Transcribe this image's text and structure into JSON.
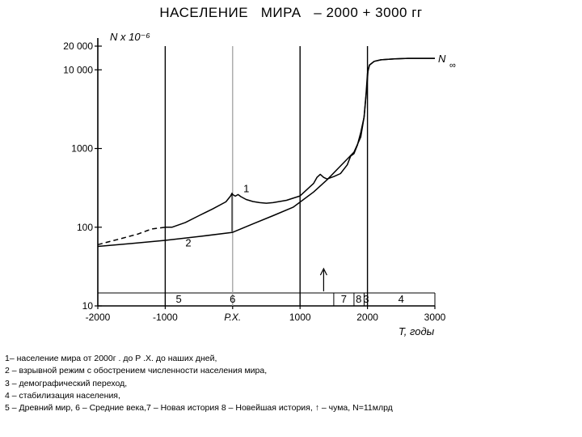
{
  "title": "НАСЕЛЕНИЕ   МИРА   – 2000 + 3000 гг",
  "chart_data": {
    "type": "line",
    "title": "НАСЕЛЕНИЕ   МИРА   – 2000 + 3000 гг",
    "xlabel": "T, годы",
    "ylabel": "N x 10⁻⁶",
    "x_scale": "linear",
    "y_scale": "log",
    "xlim": [
      -2000,
      3000
    ],
    "ylim": [
      10,
      20000
    ],
    "x_ticks": [
      -2000,
      -1000,
      0,
      1000,
      2000,
      3000
    ],
    "x_tick_labels": [
      "-2000",
      "-1000",
      "Р.Х.",
      "1000",
      "2000",
      "3000"
    ],
    "y_ticks": [
      10,
      100,
      1000,
      10000,
      20000
    ],
    "y_tick_labels": [
      "10",
      "100",
      "1000",
      "10 000",
      "20 000"
    ],
    "asymptote_label": "N ∞",
    "asymptote_value": 14000,
    "grid": false,
    "era_boundaries": [
      -1000,
      0,
      1000,
      1500,
      1800,
      1950,
      2000,
      3000
    ],
    "eras": [
      {
        "label": "5",
        "x": -800
      },
      {
        "label": "6",
        "x": 0
      },
      {
        "label": "7",
        "x": 1650
      },
      {
        "label": "8",
        "x": 1870
      },
      {
        "label": "3",
        "x": 1980
      },
      {
        "label": "4",
        "x": 2500
      }
    ],
    "plague_marker": {
      "x": 1350
    },
    "series": [
      {
        "name": "1",
        "x": [
          -1000,
          -900,
          -700,
          -500,
          -300,
          -100,
          -30,
          -10,
          0,
          40,
          80,
          120,
          200,
          300,
          400,
          500,
          600,
          800,
          1000,
          1100,
          1200,
          1250,
          1300,
          1350,
          1400,
          1500,
          1600,
          1700,
          1750,
          1800,
          1850,
          1900,
          1950,
          1990,
          2010,
          2030,
          2100,
          2200,
          2400,
          2600,
          3000
        ],
        "y": [
          100,
          100,
          115,
          140,
          170,
          210,
          250,
          270,
          260,
          248,
          260,
          245,
          225,
          212,
          205,
          202,
          205,
          220,
          250,
          300,
          360,
          430,
          470,
          430,
          410,
          440,
          480,
          620,
          800,
          860,
          1100,
          1600,
          2500,
          6000,
          10000,
          11500,
          12800,
          13400,
          13800,
          14000,
          14000
        ]
      },
      {
        "name": "2",
        "x": [
          -2000,
          -1500,
          -1000,
          -500,
          0,
          300,
          600,
          900,
          1200,
          1400,
          1600,
          1800,
          1900,
          1950,
          1980,
          2000,
          2030,
          2100,
          2200,
          2400,
          2600,
          3000
        ],
        "y": [
          57,
          62,
          68,
          76,
          86,
          110,
          140,
          180,
          280,
          400,
          600,
          900,
          1400,
          2500,
          5000,
          9000,
          11500,
          12800,
          13400,
          13800,
          14000,
          14000
        ]
      },
      {
        "name": "",
        "style": "dashed",
        "x": [
          -2000,
          -1700,
          -1400,
          -1200,
          -1000
        ],
        "y": [
          60,
          70,
          82,
          95,
          100
        ]
      }
    ],
    "series_labels": [
      {
        "label": "1",
        "x": 160,
        "y": 280
      },
      {
        "label": "2",
        "x": -700,
        "y": 57
      }
    ]
  },
  "legend": [
    "1– население мира от 2000г . до  Р .Х.  до наших дней,",
    "2 – взрывной  режим  с обострением численности  населения мира,",
    "3 – демографический   переход,",
    "4 – стабилизация  населения,",
    "5 – Древний мир,  6 – Средние века,7 – Новая история  8 – Новейшая история,  ↑  – чума, N=11млрд"
  ]
}
